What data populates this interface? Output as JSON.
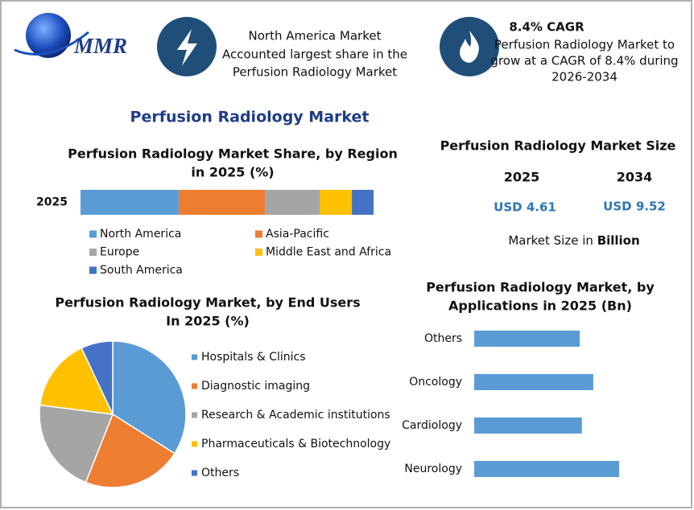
{
  "header": {
    "logo": "MMR",
    "callout_left": [
      "North America Market",
      "Accounted largest share in the",
      "Perfusion Radiology Market"
    ],
    "callout_right_title": "8.4% CAGR",
    "callout_right": [
      "Perfusion Radiology Market to",
      "grow at a CAGR of 8.4% during",
      "2026-2034"
    ],
    "main_title": "Perfusion Radiology Market"
  },
  "market_size": {
    "title": "Perfusion Radiology Market Size",
    "years": [
      "2025",
      "2034"
    ],
    "values": [
      "USD 4.61",
      "USD 9.52"
    ],
    "note": "Market Size in",
    "note_bold": "Billion"
  },
  "chart_data": [
    {
      "type": "bar",
      "stacked": true,
      "orientation": "horizontal",
      "title": [
        "Perfusion Radiology Market Share, by Region",
        "in 2025 (%)"
      ],
      "categories": [
        "2025"
      ],
      "series": [
        {
          "name": "North America",
          "color": "#5b9bd5",
          "values": [
            33.5
          ]
        },
        {
          "name": "Asia-Pacific",
          "color": "#ed7d31",
          "values": [
            29.4
          ]
        },
        {
          "name": "Europe",
          "color": "#a5a5a5",
          "values": [
            18.7
          ]
        },
        {
          "name": "Middle East and Africa",
          "color": "#ffc000",
          "values": [
            11
          ]
        },
        {
          "name": "South America",
          "color": "#4472c4",
          "values": [
            7.4
          ]
        }
      ]
    },
    {
      "type": "pie",
      "title": [
        "Perfusion Radiology Market, by End Users",
        "In 2025 (%)"
      ],
      "categories": [
        "Hospitals & Clinics",
        "Diagnostic imaging",
        "Research & Academic institutions",
        "Pharmaceuticals & Biotechnology",
        "Others"
      ],
      "values": [
        34,
        22,
        21,
        16,
        7
      ],
      "colors": [
        "#5b9bd5",
        "#ed7d31",
        "#a5a5a5",
        "#ffc000",
        "#4472c4"
      ]
    },
    {
      "type": "bar",
      "orientation": "horizontal",
      "title": [
        "Perfusion Radiology Market, by",
        "Applications in 2025 (Bn)"
      ],
      "categories": [
        "Others",
        "Oncology",
        "Cardiology",
        "Neurology"
      ],
      "values": [
        1.02,
        1.15,
        1.04,
        1.4
      ],
      "color": "#5b9bd5"
    }
  ]
}
